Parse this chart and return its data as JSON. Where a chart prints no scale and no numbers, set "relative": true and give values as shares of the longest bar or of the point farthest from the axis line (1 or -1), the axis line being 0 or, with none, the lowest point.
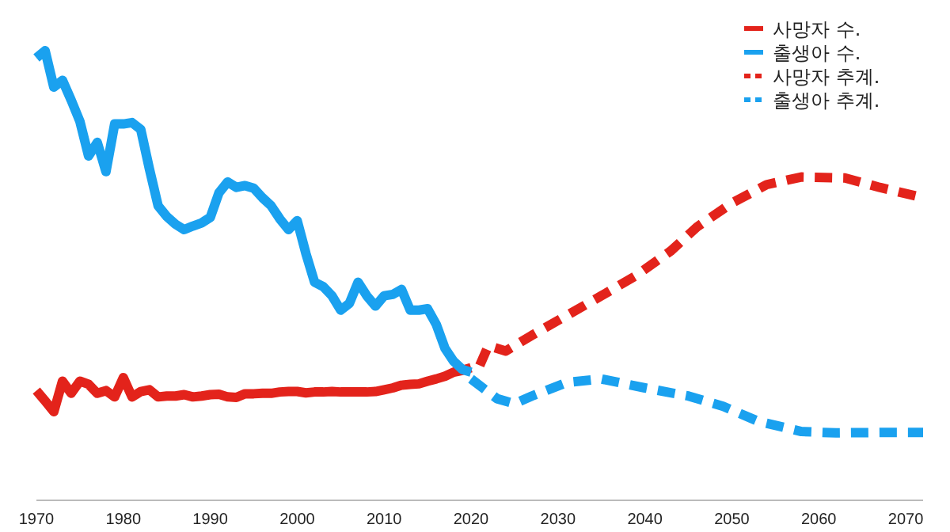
{
  "chart_data": {
    "type": "line",
    "relative": true,
    "xlim": [
      1970,
      2072
    ],
    "xticks": [
      1970,
      1980,
      1990,
      2000,
      2010,
      2020,
      2030,
      2040,
      2050,
      2060,
      2070
    ],
    "tick_labels": "x",
    "legend": "top right",
    "grid": false,
    "series": [
      {
        "name": "사망자 수.",
        "color": "#e3231b",
        "line_style": "solid",
        "x": [
          1970,
          1971,
          1972,
          1973,
          1974,
          1975,
          1976,
          1977,
          1978,
          1979,
          1980,
          1981,
          1982,
          1983,
          1984,
          1985,
          1986,
          1987,
          1988,
          1989,
          1990,
          1991,
          1992,
          1993,
          1994,
          1995,
          1996,
          1997,
          1998,
          1999,
          2000,
          2001,
          2002,
          2003,
          2004,
          2005,
          2006,
          2007,
          2008,
          2009,
          2010,
          2011,
          2012,
          2013,
          2014,
          2015,
          2016,
          2017,
          2018,
          2019,
          2020
        ],
        "values": [
          0.244,
          0.221,
          0.197,
          0.265,
          0.238,
          0.265,
          0.258,
          0.238,
          0.244,
          0.23,
          0.273,
          0.23,
          0.242,
          0.246,
          0.23,
          0.232,
          0.232,
          0.235,
          0.23,
          0.232,
          0.235,
          0.236,
          0.23,
          0.229,
          0.237,
          0.237,
          0.238,
          0.238,
          0.241,
          0.242,
          0.242,
          0.239,
          0.241,
          0.241,
          0.242,
          0.241,
          0.241,
          0.241,
          0.241,
          0.242,
          0.246,
          0.25,
          0.256,
          0.258,
          0.259,
          0.265,
          0.27,
          0.276,
          0.285,
          0.289,
          0.295
        ]
      },
      {
        "name": "출생아 수.",
        "color": "#1aa1ef",
        "line_style": "solid",
        "x": [
          1970,
          1971,
          1972,
          1973,
          1974,
          1975,
          1976,
          1977,
          1978,
          1979,
          1980,
          1981,
          1982,
          1983,
          1984,
          1985,
          1986,
          1987,
          1988,
          1989,
          1990,
          1991,
          1992,
          1993,
          1994,
          1995,
          1996,
          1997,
          1998,
          1999,
          2000,
          2001,
          2002,
          2003,
          2004,
          2005,
          2006,
          2007,
          2008,
          2009,
          2010,
          2011,
          2012,
          2013,
          2014,
          2015,
          2016,
          2017,
          2018,
          2019,
          2020
        ],
        "values": [
          0.984,
          1.0,
          0.919,
          0.934,
          0.89,
          0.843,
          0.766,
          0.796,
          0.731,
          0.837,
          0.837,
          0.84,
          0.825,
          0.737,
          0.655,
          0.631,
          0.614,
          0.602,
          0.61,
          0.617,
          0.629,
          0.684,
          0.708,
          0.696,
          0.7,
          0.694,
          0.673,
          0.655,
          0.626,
          0.602,
          0.622,
          0.549,
          0.485,
          0.475,
          0.455,
          0.423,
          0.438,
          0.485,
          0.455,
          0.432,
          0.455,
          0.458,
          0.469,
          0.423,
          0.423,
          0.426,
          0.391,
          0.338,
          0.309,
          0.291,
          0.285
        ]
      },
      {
        "name": "사망자 추계.",
        "color": "#e3231b",
        "line_style": "dashed",
        "x": [
          2021,
          2022,
          2024,
          2027,
          2031,
          2035,
          2039,
          2043,
          2046,
          2050,
          2054,
          2058,
          2063,
          2067,
          2072
        ],
        "values": [
          0.3,
          0.344,
          0.332,
          0.367,
          0.411,
          0.455,
          0.5,
          0.555,
          0.608,
          0.661,
          0.702,
          0.719,
          0.717,
          0.696,
          0.673
        ]
      },
      {
        "name": "출생아 추계.",
        "color": "#1aa1ef",
        "line_style": "dashed",
        "x": [
          2020,
          2023,
          2025,
          2027,
          2031,
          2035,
          2040,
          2045,
          2049,
          2053,
          2058,
          2062,
          2067,
          2072
        ],
        "values": [
          0.27,
          0.226,
          0.215,
          0.232,
          0.262,
          0.27,
          0.25,
          0.232,
          0.209,
          0.176,
          0.153,
          0.15,
          0.151,
          0.151
        ]
      }
    ]
  }
}
